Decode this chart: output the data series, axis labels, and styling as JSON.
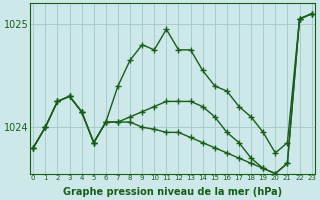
{
  "xlabel": "Graphe pression niveau de la mer (hPa)",
  "bg_color": "#cce8e8",
  "line_color": "#1a5c1a",
  "grid_color": "#a8cccc",
  "hours": [
    0,
    1,
    2,
    3,
    4,
    5,
    6,
    7,
    8,
    9,
    10,
    11,
    12,
    13,
    14,
    15,
    16,
    17,
    18,
    19,
    20,
    21,
    22,
    23
  ],
  "series_main": [
    1023.8,
    1024.0,
    1024.25,
    1024.3,
    1024.15,
    1023.85,
    1024.05,
    1024.4,
    1024.65,
    1024.8,
    1024.75,
    1024.95,
    1024.75,
    1024.75,
    1024.55,
    1024.4,
    1024.35,
    1024.2,
    1024.1,
    1023.95,
    1023.75,
    1023.85,
    1025.05,
    1025.1
  ],
  "series_trend1": [
    1023.8,
    1024.0,
    1024.25,
    1024.3,
    1024.15,
    1023.85,
    1024.05,
    1024.05,
    1024.1,
    1024.15,
    1024.2,
    1024.25,
    1024.25,
    1024.25,
    1024.2,
    1024.1,
    1023.95,
    1023.85,
    1023.7,
    1023.6,
    1023.55,
    1023.65,
    1025.05,
    1025.1
  ],
  "series_trend2": [
    1023.8,
    1024.0,
    1024.25,
    1024.3,
    1024.15,
    1023.85,
    1024.05,
    1024.05,
    1024.05,
    1024.0,
    1023.98,
    1023.95,
    1023.95,
    1023.9,
    1023.85,
    1023.8,
    1023.75,
    1023.7,
    1023.65,
    1023.6,
    1023.55,
    1023.65,
    1025.05,
    1025.1
  ],
  "ylim": [
    1023.55,
    1025.2
  ],
  "yticks": [
    1024,
    1025
  ],
  "xtick_labels": [
    "0",
    "1",
    "2",
    "3",
    "4",
    "5",
    "6",
    "7",
    "8",
    "9",
    "10",
    "11",
    "12",
    "13",
    "14",
    "15",
    "16",
    "17",
    "18",
    "19",
    "20",
    "21",
    "22",
    "23"
  ]
}
